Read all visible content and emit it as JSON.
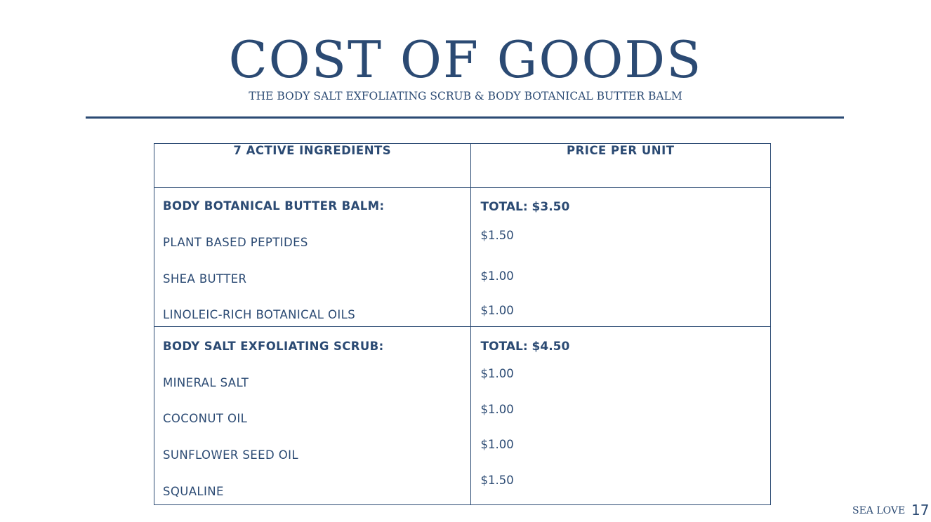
{
  "header": {
    "title": "COST OF GOODS",
    "subtitle": "THE BODY SALT EXFOLIATING SCRUB & BODY BOTANICAL BUTTER BALM"
  },
  "table": {
    "headers": [
      "7 ACTIVE INGREDIENTS",
      "PRICE PER UNIT"
    ],
    "sections": [
      {
        "name": "BODY BOTANICAL BUTTER BALM:",
        "total": "TOTAL: $3.50",
        "items": [
          {
            "ingredient": "PLANT BASED PEPTIDES",
            "price": "$1.50"
          },
          {
            "ingredient": "SHEA BUTTER",
            "price": "$1.00"
          },
          {
            "ingredient": "LINOLEIC-RICH BOTANICAL OILS",
            "price": "$1.00"
          }
        ]
      },
      {
        "name": "BODY SALT EXFOLIATING SCRUB:",
        "total": "TOTAL: $4.50",
        "items": [
          {
            "ingredient": "MINERAL SALT",
            "price": "$1.00"
          },
          {
            "ingredient": "COCONUT OIL",
            "price": "$1.00"
          },
          {
            "ingredient": "SUNFLOWER SEED OIL",
            "price": "$1.00"
          },
          {
            "ingredient": "SQUALINE",
            "price": "$1.50"
          }
        ]
      }
    ]
  },
  "footer": {
    "brand": "SEA LOVE",
    "page_number": "17"
  },
  "colors": {
    "primary": "#2b4a73",
    "background": "#ffffff"
  }
}
